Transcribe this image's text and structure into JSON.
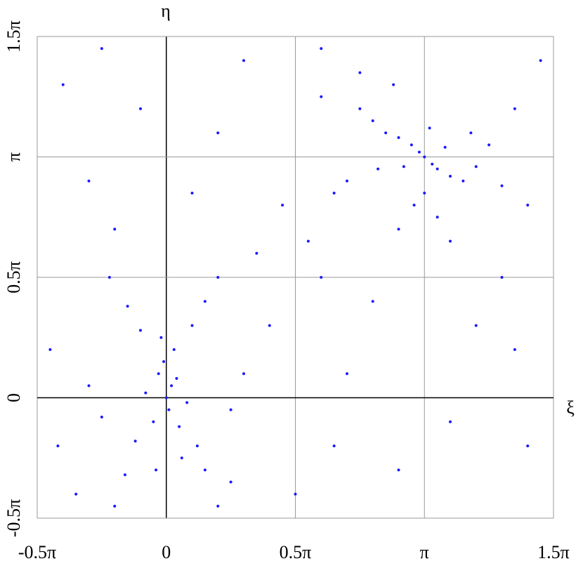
{
  "chart_data": {
    "type": "scatter",
    "xlabel": "ξ",
    "ylabel": "η",
    "color": "#1a1aff",
    "x": [
      0,
      0.02,
      -0.03,
      0.01,
      -0.01,
      0.03,
      -0.05,
      0.05,
      -0.02,
      0.04,
      -0.08,
      0.08,
      0.1,
      -0.1,
      0.15,
      -0.15,
      0.2,
      -0.22,
      0.12,
      -0.12,
      0.15,
      -0.16,
      0.2,
      -0.2,
      0.06,
      -0.04,
      0.3,
      -0.3,
      0.25,
      -0.25,
      1,
      0.98,
      1.03,
      0.95,
      1.05,
      0.9,
      1.1,
      0.92,
      1.08,
      0.85,
      1.15,
      0.8,
      1.2,
      0.82,
      1.18,
      0.75,
      1.25,
      0.7,
      1.3,
      1,
      0.96,
      1.05,
      0.9,
      1.1,
      0.6,
      1.35,
      0.88,
      1.4,
      0.65,
      1.02,
      -0.4,
      -0.3,
      -0.45,
      -0.35,
      0.3,
      0.45,
      0.4,
      0.6,
      0.7,
      0.9,
      1.2,
      1.4,
      1.3,
      0.5,
      0.8,
      0.55,
      0.35,
      0.2,
      -0.2,
      -0.1,
      0.1,
      1.45,
      0.6,
      1.1,
      0.65,
      1.35,
      0.25,
      -0.42,
      0.75,
      -0.25
    ],
    "values": [
      0,
      0.05,
      0.1,
      -0.05,
      0.15,
      0.2,
      -0.1,
      -0.12,
      0.25,
      0.08,
      0.02,
      -0.02,
      0.3,
      0.28,
      0.4,
      0.38,
      0.5,
      0.5,
      -0.2,
      -0.18,
      -0.3,
      -0.32,
      -0.45,
      -0.45,
      -0.25,
      -0.3,
      0.1,
      0.05,
      -0.05,
      -0.08,
      1,
      1.02,
      0.97,
      1.05,
      0.95,
      1.08,
      0.92,
      0.96,
      1.04,
      1.1,
      0.9,
      1.15,
      0.96,
      0.95,
      1.1,
      1.2,
      1.05,
      0.9,
      0.88,
      0.85,
      0.8,
      0.75,
      0.7,
      0.65,
      1.25,
      1.2,
      1.3,
      0.8,
      0.85,
      1.12,
      1.3,
      0.9,
      0.2,
      -0.4,
      1.4,
      0.8,
      0.3,
      0.5,
      0.1,
      -0.3,
      0.3,
      -0.2,
      0.5,
      -0.4,
      0.4,
      0.65,
      0.6,
      1.1,
      0.7,
      1.2,
      0.85,
      1.4,
      1.45,
      -0.1,
      -0.2,
      0.2,
      -0.35,
      -0.2,
      1.35,
      1.45
    ],
    "xlim": [
      -0.5,
      1.5
    ],
    "ylim": [
      -0.5,
      1.5
    ],
    "xticks": [
      {
        "value": -0.5,
        "label": "-0.5π"
      },
      0,
      {
        "value": 0.5,
        "label": "0.5π"
      },
      {
        "value": 1,
        "label": "π"
      },
      {
        "value": 1.5,
        "label": "1.5π"
      }
    ],
    "yticks": [
      {
        "value": -0.5,
        "label": "-0.5π"
      },
      0,
      {
        "value": 0.5,
        "label": "0.5π"
      },
      {
        "value": 1,
        "label": "π"
      },
      {
        "value": 1.5,
        "label": "1.5π"
      }
    ],
    "grid": true
  }
}
